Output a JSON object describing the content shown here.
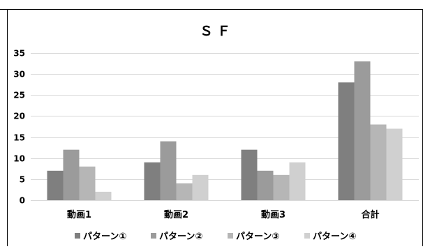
{
  "chart_data": {
    "type": "bar",
    "title": "ＳＦ",
    "xlabel": "",
    "ylabel": "",
    "categories": [
      "動画1",
      "動画2",
      "動画3",
      "合計"
    ],
    "ylim": [
      0,
      35
    ],
    "yticks": [
      0,
      5,
      10,
      15,
      20,
      25,
      30,
      35
    ],
    "grid": true,
    "legend_position": "bottom",
    "series": [
      {
        "name": "パターン①",
        "values": [
          7,
          9,
          12,
          28
        ],
        "color": "#7f7f7f"
      },
      {
        "name": "パターン②",
        "values": [
          12,
          14,
          7,
          33
        ],
        "color": "#9b9b9b"
      },
      {
        "name": "パターン③",
        "values": [
          8,
          4,
          6,
          18
        ],
        "color": "#b6b6b6"
      },
      {
        "name": "パターン④",
        "values": [
          2,
          6,
          9,
          17
        ],
        "color": "#d0d0d0"
      }
    ]
  }
}
